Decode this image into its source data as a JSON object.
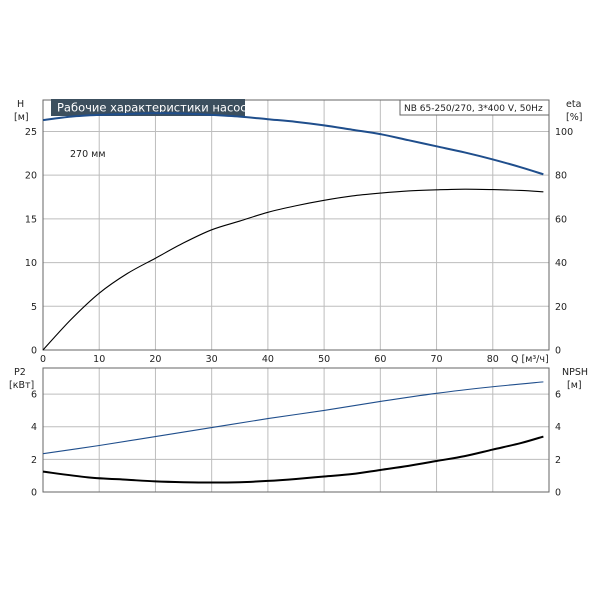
{
  "colors": {
    "curve_blue": "#1f4e8c",
    "curve_black": "#000000",
    "grid": "#bdbdbd",
    "frame": "#666666",
    "title_bg": "#3c4f5e"
  },
  "title": "Рабочие характеристики насоса",
  "model": "NB 65-250/270, 3*400 V, 50Hz",
  "chart_data": [
    {
      "type": "line",
      "title": "Рабочие характеристики насоса",
      "x_label": "Q [м³/ч]",
      "x_ticks": [
        0,
        10,
        20,
        30,
        40,
        50,
        60,
        70,
        80
      ],
      "xlim": [
        0,
        90
      ],
      "y_left_label_top": "H",
      "y_left_label_unit": "[м]",
      "y_left_ticks": [
        0,
        5,
        10,
        15,
        20,
        25
      ],
      "ylim_left": [
        0,
        28.6
      ],
      "y_right_label_top": "eta",
      "y_right_label_unit": "[%]",
      "y_right_ticks": [
        0,
        20,
        40,
        60,
        80,
        100
      ],
      "ylim_right": [
        0,
        114.4
      ],
      "annotation": "270 мм",
      "series": [
        {
          "axis": "left",
          "x": [
            0,
            5,
            10,
            15,
            20,
            25,
            30,
            35,
            40,
            45,
            50,
            55,
            60,
            65,
            70,
            75,
            80,
            85,
            89
          ],
          "values": [
            26.3,
            26.7,
            26.9,
            27.0,
            27.1,
            27.05,
            26.9,
            26.7,
            26.4,
            26.1,
            25.7,
            25.2,
            24.7,
            24.0,
            23.3,
            22.6,
            21.8,
            20.9,
            20.1
          ]
        },
        {
          "axis": "right",
          "x": [
            0,
            5,
            10,
            15,
            20,
            25,
            30,
            35,
            40,
            45,
            50,
            55,
            60,
            65,
            70,
            75,
            80,
            85,
            89
          ],
          "values": [
            0,
            14,
            26,
            35,
            42,
            49,
            55,
            59,
            63,
            66,
            68.5,
            70.5,
            71.8,
            72.8,
            73.3,
            73.6,
            73.4,
            73.0,
            72.4
          ]
        }
      ]
    },
    {
      "type": "line",
      "y_left_label_top": "P2",
      "y_left_label_unit": "[кВт]",
      "y_left_ticks": [
        0,
        2,
        4,
        6
      ],
      "ylim_left": [
        0,
        7.6
      ],
      "y_right_label_top": "NPSH",
      "y_right_label_unit": "[м]",
      "y_right_ticks": [
        0,
        2,
        4,
        6
      ],
      "ylim_right": [
        0,
        7.6
      ],
      "xlim": [
        0,
        90
      ],
      "series": [
        {
          "axis": "left",
          "x": [
            0,
            10,
            20,
            30,
            40,
            50,
            60,
            70,
            80,
            89
          ],
          "values": [
            2.35,
            2.85,
            3.4,
            3.95,
            4.5,
            5.0,
            5.55,
            6.05,
            6.45,
            6.75
          ]
        },
        {
          "axis": "right",
          "x": [
            0,
            8,
            15,
            20,
            25,
            30,
            35,
            40,
            45,
            50,
            55,
            60,
            65,
            70,
            75,
            80,
            85,
            89
          ],
          "values": [
            1.25,
            0.9,
            0.75,
            0.65,
            0.6,
            0.58,
            0.6,
            0.68,
            0.8,
            0.95,
            1.1,
            1.35,
            1.6,
            1.9,
            2.2,
            2.6,
            3.0,
            3.4
          ]
        }
      ]
    }
  ]
}
